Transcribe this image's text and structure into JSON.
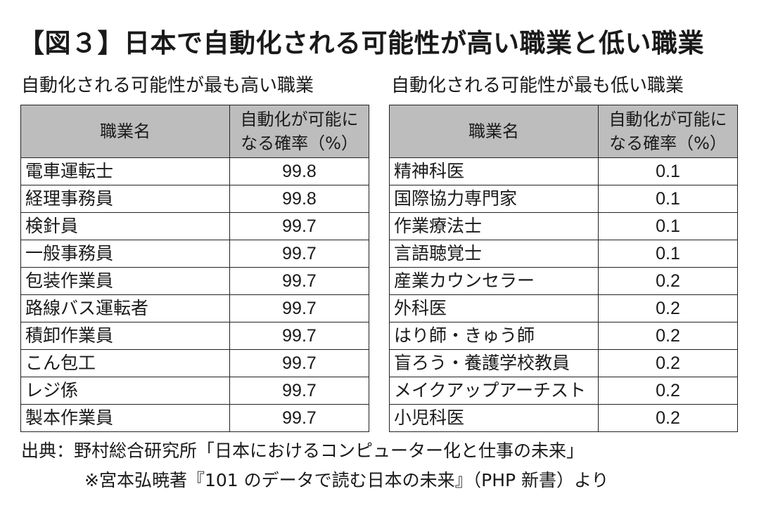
{
  "title": "【図３】日本で自動化される可能性が高い職業と低い職業",
  "high": {
    "subtitle": "自動化される可能性が最も高い職業",
    "header_name": "職業名",
    "header_prob": "自動化が可能になる確率（%）",
    "rows": [
      {
        "name": "電車運転士",
        "value": "99.8"
      },
      {
        "name": "経理事務員",
        "value": "99.8"
      },
      {
        "name": "検針員",
        "value": "99.7"
      },
      {
        "name": "一般事務員",
        "value": "99.7"
      },
      {
        "name": "包装作業員",
        "value": "99.7"
      },
      {
        "name": "路線バス運転者",
        "value": "99.7"
      },
      {
        "name": "積卸作業員",
        "value": "99.7"
      },
      {
        "name": "こん包工",
        "value": "99.7"
      },
      {
        "name": "レジ係",
        "value": "99.7"
      },
      {
        "name": "製本作業員",
        "value": "99.7"
      }
    ]
  },
  "low": {
    "subtitle": "自動化される可能性が最も低い職業",
    "header_name": "職業名",
    "header_prob": "自動化が可能になる確率（%）",
    "rows": [
      {
        "name": "精神科医",
        "value": "0.1"
      },
      {
        "name": "国際協力専門家",
        "value": "0.1"
      },
      {
        "name": "作業療法士",
        "value": "0.1"
      },
      {
        "name": "言語聴覚士",
        "value": "0.1"
      },
      {
        "name": "産業カウンセラー",
        "value": "0.2"
      },
      {
        "name": "外科医",
        "value": "0.2"
      },
      {
        "name": "はり師・きゅう師",
        "value": "0.2"
      },
      {
        "name": "盲ろう・養護学校教員",
        "value": "0.2"
      },
      {
        "name": "メイクアップアーチスト",
        "value": "0.2"
      },
      {
        "name": "小児科医",
        "value": "0.2"
      }
    ]
  },
  "source": "出典：野村総合研究所「日本におけるコンピューター化と仕事の未来」",
  "source_note": "※宮本弘暁著『101 のデータで読む日本の未来』（PHP 新書）より"
}
